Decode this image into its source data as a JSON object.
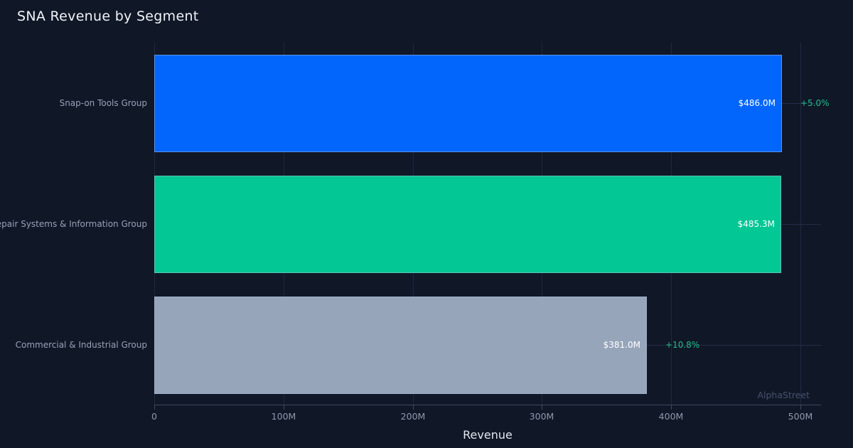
{
  "page": {
    "title": "SNA Revenue by Segment",
    "watermark": "AlphaStreet"
  },
  "colors": {
    "background": "#101727",
    "title_text": "#f0f3f8",
    "category_label_text": "#98a2b4",
    "tick_label_text": "#8f99ac",
    "value_label_text": "#ffffff",
    "change_label_text": "#24bd8b",
    "gridline": "#1e2940",
    "axis_line": "#3e4a61",
    "watermark_text": "#46536e",
    "bar_blue": "#0366fc",
    "bar_teal": "#03c795",
    "bar_gray": "#97a5ba"
  },
  "chart_data": {
    "type": "bar",
    "orientation": "horizontal",
    "title": "SNA Revenue by Segment",
    "xlabel": "Revenue",
    "ylabel": "",
    "categories": [
      "Snap-on Tools Group",
      "Repair Systems & Information Group",
      "Commercial & Industrial Group"
    ],
    "values": [
      486.0,
      485.3,
      381.0
    ],
    "value_labels": [
      "$486.0M",
      "$485.3M",
      "$381.0M"
    ],
    "change_labels": [
      "+5.0%",
      null,
      "+10.8%"
    ],
    "bar_colors": [
      "#0366fc",
      "#03c795",
      "#97a5ba"
    ],
    "units": "millions USD",
    "xlim": [
      0,
      516
    ],
    "xticks": [
      {
        "value": 0,
        "label": "0"
      },
      {
        "value": 100,
        "label": "100M"
      },
      {
        "value": 200,
        "label": "200M"
      },
      {
        "value": 300,
        "label": "300M"
      },
      {
        "value": 400,
        "label": "400M"
      },
      {
        "value": 500,
        "label": "500M"
      }
    ],
    "grid": true,
    "legend": false,
    "watermark": "AlphaStreet"
  }
}
